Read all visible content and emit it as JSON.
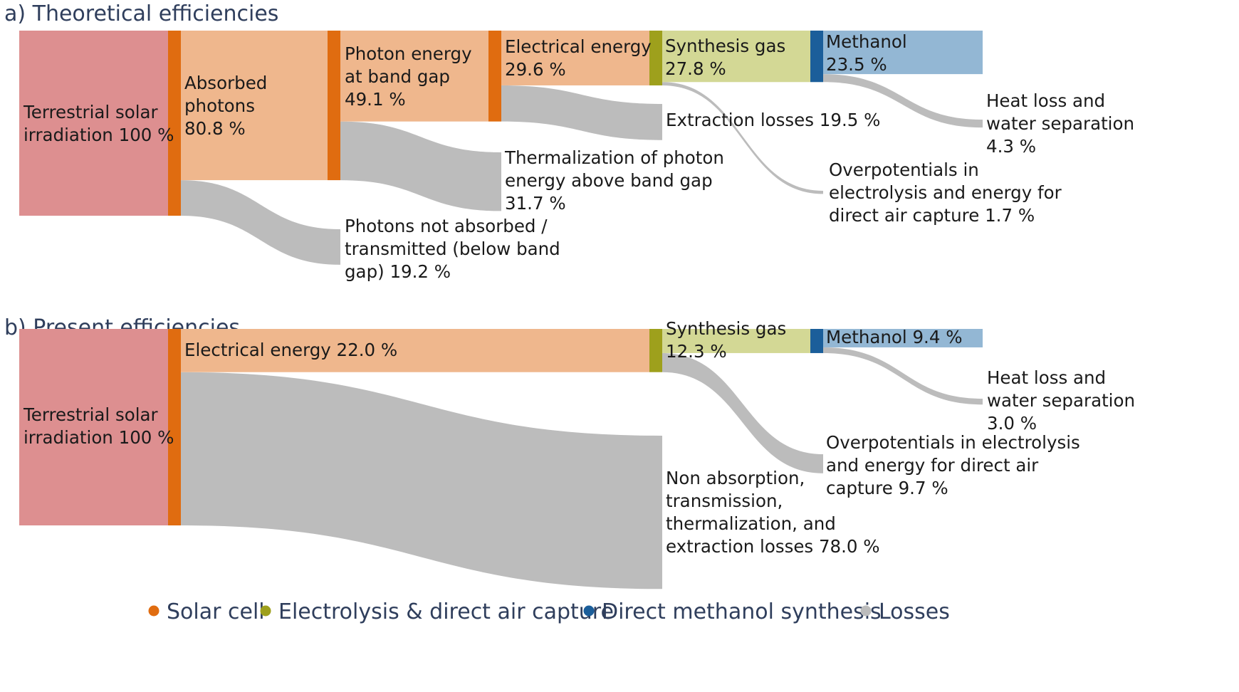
{
  "panels": {
    "a": {
      "title": "a) Theoretical efficiencies",
      "labels": {
        "solar": [
          "Terrestrial solar",
          "irradiation 100 %"
        ],
        "absorbed": [
          "Absorbed",
          "photons",
          "80.8 %"
        ],
        "bandgap": [
          "Photon energy",
          "at band gap",
          "49.1 %"
        ],
        "electrical": [
          "Electrical energy",
          "29.6 %"
        ],
        "syngas": [
          "Synthesis gas",
          "27.8 %"
        ],
        "methanol": [
          "Methanol",
          "23.5 %"
        ],
        "not_absorbed": [
          "Photons not absorbed /",
          "transmitted (below band",
          "gap) 19.2 %"
        ],
        "thermalization": [
          "Thermalization of photon",
          "energy above band gap",
          "31.7 %"
        ],
        "extraction": [
          "Extraction losses 19.5 %"
        ],
        "overpotentials": [
          "Overpotentials in",
          "electrolysis and energy for",
          "direct air capture 1.7 %"
        ],
        "heatloss": [
          "Heat loss and",
          "water separation",
          "4.3 %"
        ]
      },
      "values": {
        "solar": 100,
        "absorbed": 80.8,
        "bandgap": 49.1,
        "electrical": 29.6,
        "syngas": 27.8,
        "methanol": 23.5,
        "not_absorbed": 19.2,
        "thermalization": 31.7,
        "extraction": 19.5,
        "overpotentials": 1.7,
        "heatloss": 4.3
      }
    },
    "b": {
      "title": "b) Present efficiencies",
      "labels": {
        "solar": [
          "Terrestrial solar",
          "irradiation 100 %"
        ],
        "electrical": [
          "Electrical energy 22.0 %"
        ],
        "syngas": [
          "Synthesis gas",
          "12.3 %"
        ],
        "methanol": [
          "Methanol 9.4 %"
        ],
        "losses": [
          "Non absorption,",
          "transmission,",
          "thermalization, and",
          "extraction losses 78.0 %"
        ],
        "overpotentials": [
          "Overpotentials in electrolysis",
          "and energy for direct air",
          "capture 9.7 %"
        ],
        "heatloss": [
          "Heat loss and",
          "water separation",
          "3.0 %"
        ]
      },
      "values": {
        "solar": 100,
        "electrical": 22.0,
        "syngas": 12.3,
        "methanol": 9.4,
        "losses": 78.0,
        "overpotentials": 9.7,
        "heatloss": 3.0
      }
    }
  },
  "legend": [
    {
      "label": "Solar cell",
      "color": "#e06c10"
    },
    {
      "label": "Electrolysis & direct air capture",
      "color": "#9ea01c"
    },
    {
      "label": "Direct methanol synthesis",
      "color": "#1b5e9a"
    },
    {
      "label": "Losses",
      "color": "#bcbcbc"
    }
  ],
  "colors": {
    "solar_source": "#dd8f90",
    "energy_node": "#efb78d",
    "syngas_node": "#d3d895",
    "methanol_node": "#93b7d4",
    "loss": "#bcbcbc",
    "solar_bar": "#e06c10",
    "electrolysis_bar": "#9ea01c",
    "methanol_bar": "#1b5e9a"
  }
}
